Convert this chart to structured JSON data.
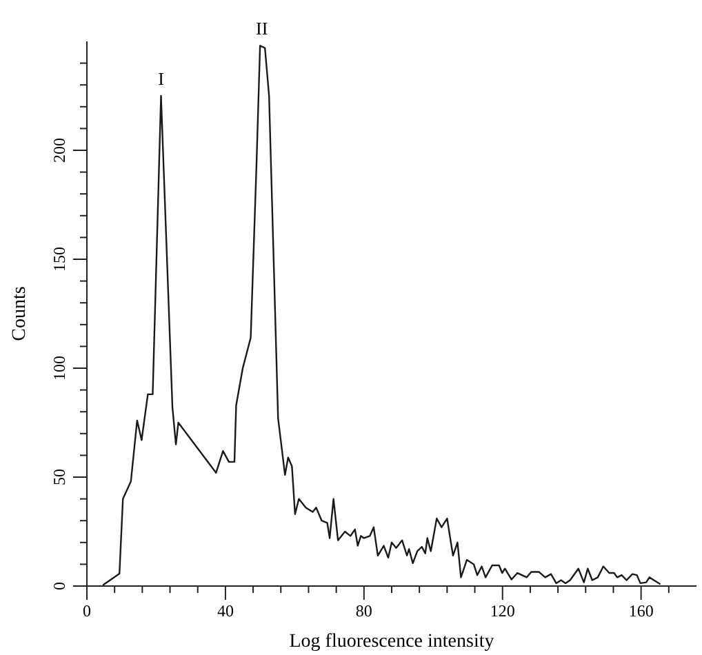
{
  "chart_data": {
    "type": "line",
    "xlabel": "Log fluorescence intensity",
    "ylabel": "Counts",
    "xlim": [
      0,
      176
    ],
    "ylim": [
      0,
      250
    ],
    "xticks": [
      0,
      {
        "value": 8,
        "label": null
      },
      {
        "value": 16,
        "label": null
      },
      {
        "value": 24,
        "label": null
      },
      {
        "value": 32,
        "label": null
      },
      40,
      {
        "value": 48,
        "label": null
      },
      {
        "value": 56,
        "label": null
      },
      {
        "value": 64,
        "label": null
      },
      {
        "value": 72,
        "label": null
      },
      80,
      {
        "value": 88,
        "label": null
      },
      {
        "value": 96,
        "label": null
      },
      {
        "value": 104,
        "label": null
      },
      {
        "value": 112,
        "label": null
      },
      120,
      {
        "value": 128,
        "label": null
      },
      {
        "value": 136,
        "label": null
      },
      {
        "value": 144,
        "label": null
      },
      {
        "value": 152,
        "label": null
      },
      160,
      {
        "value": 168,
        "label": null
      }
    ],
    "yticks": [
      0,
      {
        "value": 10,
        "label": null
      },
      {
        "value": 20,
        "label": null
      },
      {
        "value": 30,
        "label": null
      },
      {
        "value": 40,
        "label": null
      },
      50,
      {
        "value": 60,
        "label": null
      },
      {
        "value": 70,
        "label": null
      },
      {
        "value": 80,
        "label": null
      },
      {
        "value": 90,
        "label": null
      },
      100,
      {
        "value": 110,
        "label": null
      },
      {
        "value": 120,
        "label": null
      },
      {
        "value": 130,
        "label": null
      },
      {
        "value": 140,
        "label": null
      },
      150,
      {
        "value": 160,
        "label": null
      },
      {
        "value": 170,
        "label": null
      },
      {
        "value": 180,
        "label": null
      },
      {
        "value": 190,
        "label": null
      },
      200,
      {
        "value": 210,
        "label": null
      },
      {
        "value": 220,
        "label": null
      },
      {
        "value": 230,
        "label": null
      },
      {
        "value": 240,
        "label": null
      }
    ],
    "grid": false,
    "marker": "none",
    "line_style": "solid",
    "annotations": [
      {
        "text": "I",
        "x": 21.4,
        "y": 225
      },
      {
        "text": "II",
        "x": 50.5,
        "y": 248
      }
    ],
    "series": [
      {
        "color": "#1a1a1a",
        "x": [
          4.8,
          9.4,
          10.4,
          12.7,
          14.5,
          15.8,
          17.6,
          19,
          21.4,
          24.7,
          25.7,
          26.4,
          37.3,
          39.3,
          41,
          42.6,
          43.1,
          45,
          47.3,
          49,
          50,
          51.4,
          52.6,
          55.2,
          57.2,
          58.1,
          59.2,
          60.1,
          61.2,
          63.2,
          65.2,
          66.2,
          67.8,
          69.4,
          70.1,
          71.2,
          72.5,
          74.5,
          76.1,
          77.4,
          78.2,
          79.1,
          80,
          81.7,
          82.8,
          84,
          85.7,
          87,
          88,
          89.3,
          91,
          92.4,
          93,
          94.1,
          95.4,
          96.7,
          97.7,
          98.3,
          99.3,
          101,
          102.4,
          104,
          105.7,
          107,
          108,
          109.7,
          111.7,
          112.7,
          114,
          115.1,
          117,
          119,
          119.9,
          120.7,
          122.6,
          124.3,
          127,
          128.3,
          130.5,
          132.3,
          134,
          135.5,
          136.9,
          138.2,
          139.5,
          141.9,
          143.5,
          144.6,
          145.9,
          147.5,
          149.1,
          150.8,
          152.2,
          153.1,
          154.4,
          155.8,
          157.5,
          158.8,
          159.8,
          161.5,
          162.4,
          163.7,
          165.4
        ],
        "values": [
          0.6,
          5.7,
          40,
          48,
          76,
          67,
          88,
          88,
          225,
          82,
          65,
          75,
          52,
          62,
          57,
          57,
          83,
          100,
          114,
          195,
          248,
          247,
          225,
          77,
          51,
          59,
          55,
          33,
          40,
          36,
          34,
          36,
          30,
          29,
          22,
          40,
          21,
          25,
          23,
          26,
          18.5,
          23,
          22,
          23,
          27,
          14,
          18.5,
          13,
          20,
          17.5,
          21,
          14,
          17,
          10.5,
          16,
          18,
          15,
          22,
          16,
          31,
          27,
          31,
          14,
          20,
          4,
          12,
          10,
          5,
          9,
          4,
          9.5,
          9.5,
          6,
          8,
          3,
          6,
          4,
          6.5,
          6.5,
          4,
          5.5,
          1.3,
          2.7,
          1.3,
          2.7,
          8,
          1.7,
          8,
          2.7,
          4,
          9,
          6,
          6,
          4,
          5,
          2.7,
          5.5,
          5,
          1.3,
          1.7,
          4,
          2.7,
          1
        ]
      }
    ]
  }
}
